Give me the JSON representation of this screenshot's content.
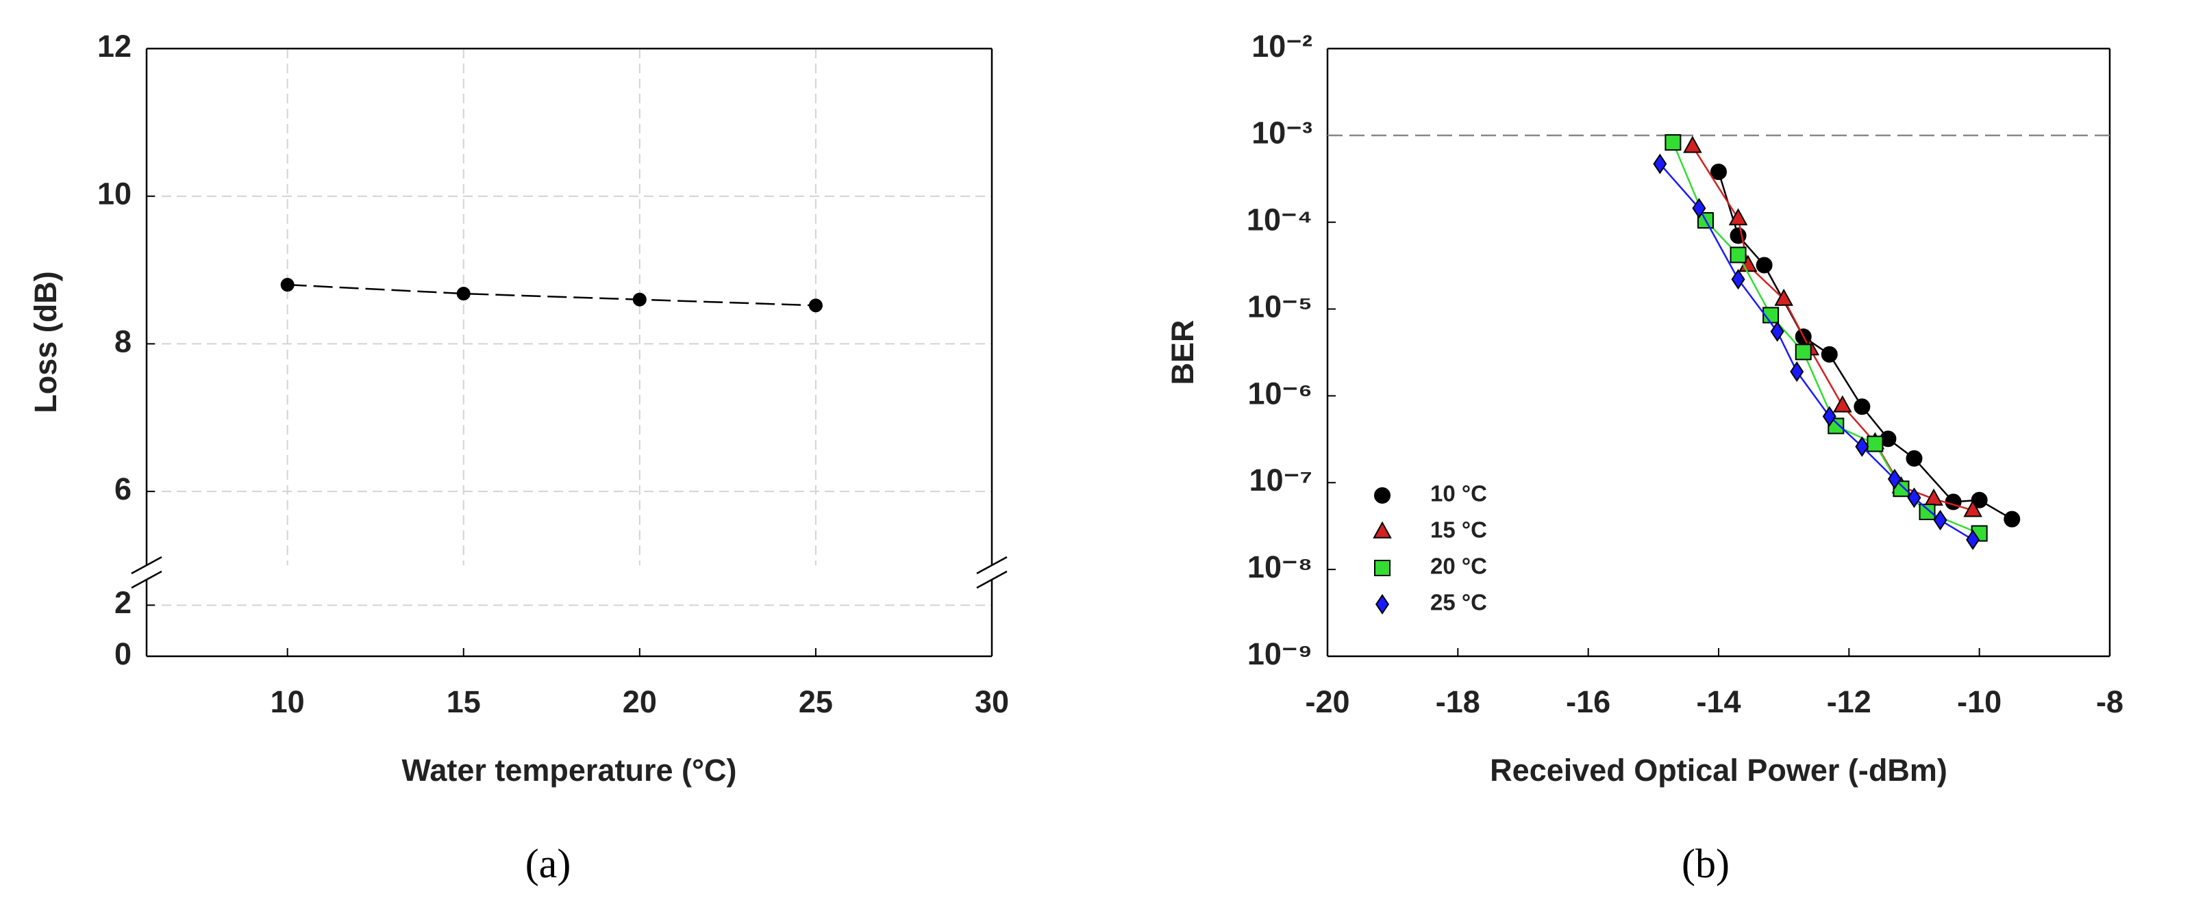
{
  "chart_data": [
    {
      "type": "line",
      "caption": "(a)",
      "xlabel": "Water temperature (°C)",
      "ylabel": "Loss (dB)",
      "x": [
        10,
        15,
        20,
        25
      ],
      "series": [
        {
          "color": "#000000",
          "marker": "circle",
          "line_style": "dashed",
          "values": [
            8.8,
            8.68,
            8.6,
            8.52
          ]
        }
      ],
      "xlim": [
        6,
        30
      ],
      "xticks": [
        10,
        15,
        20,
        25,
        30
      ],
      "ylim": [
        0,
        12
      ],
      "yticks": [
        0,
        2,
        6,
        8,
        10,
        12
      ],
      "ybreak": [
        3,
        5
      ],
      "grid": true
    },
    {
      "type": "line",
      "caption": "(b)",
      "xlabel": "Received Optical Power (-dBm)",
      "ylabel": "BER",
      "series": [
        {
          "name": "10 °C",
          "color": "#000000",
          "marker": "circle",
          "x": [
            -14.0,
            -13.7,
            -13.3,
            -12.7,
            -12.3,
            -11.8,
            -11.4,
            -11.0,
            -10.4,
            -10.0,
            -9.5
          ],
          "values": [
            0.00038,
            7e-05,
            3.2e-05,
            4.8e-06,
            3e-06,
            7.5e-07,
            3.2e-07,
            1.9e-07,
            6e-08,
            6.3e-08,
            3.8e-08
          ]
        },
        {
          "name": "15 °C",
          "color": "#d42020",
          "marker": "triangle",
          "x": [
            -14.4,
            -13.7,
            -13.55,
            -13.0,
            -12.6,
            -12.1,
            -11.6,
            -11.2,
            -10.7,
            -10.1
          ],
          "values": [
            0.00075,
            0.00011,
            3.2e-05,
            1.3e-05,
            3.5e-06,
            7.7e-07,
            2.9e-07,
            9e-08,
            6.5e-08,
            4.8e-08
          ]
        },
        {
          "name": "20 °C",
          "color": "#33dd33",
          "marker": "square",
          "x": [
            -14.7,
            -14.2,
            -13.7,
            -13.2,
            -12.7,
            -12.2,
            -11.6,
            -11.2,
            -10.8,
            -10.0
          ],
          "values": [
            0.00083,
            0.000105,
            4.2e-05,
            8.5e-06,
            3.2e-06,
            4.5e-07,
            2.8e-07,
            8.5e-08,
            4.6e-08,
            2.6e-08
          ]
        },
        {
          "name": "25 °C",
          "color": "#1a1aff",
          "marker": "diamond",
          "x": [
            -14.9,
            -14.3,
            -13.7,
            -13.1,
            -12.8,
            -12.3,
            -11.8,
            -11.3,
            -11.0,
            -10.6,
            -10.1
          ],
          "values": [
            0.00047,
            0.000145,
            2.2e-05,
            5.5e-06,
            1.9e-06,
            5.8e-07,
            2.6e-07,
            1.1e-07,
            6.7e-08,
            3.7e-08,
            2.2e-08
          ]
        }
      ],
      "xlim": [
        -20,
        -8
      ],
      "xticks": [
        -20,
        -18,
        -16,
        -14,
        -12,
        -10,
        -8
      ],
      "ylim": [
        1e-09,
        0.01
      ],
      "log_y": true,
      "yticks": [
        {
          "value": 1e-09,
          "label": "10⁻⁹"
        },
        {
          "value": 1e-08,
          "label": "10⁻⁸"
        },
        {
          "value": 1e-07,
          "label": "10⁻⁷"
        },
        {
          "value": 1e-06,
          "label": "10⁻⁶"
        },
        {
          "value": 1e-05,
          "label": "10⁻⁵"
        },
        {
          "value": 0.0001,
          "label": "10⁻⁴"
        },
        {
          "value": 0.001,
          "label": "10⁻³"
        },
        {
          "value": 0.01,
          "label": "10⁻²"
        }
      ],
      "hline": 0.001,
      "grid": false,
      "legend": "lower left"
    }
  ]
}
